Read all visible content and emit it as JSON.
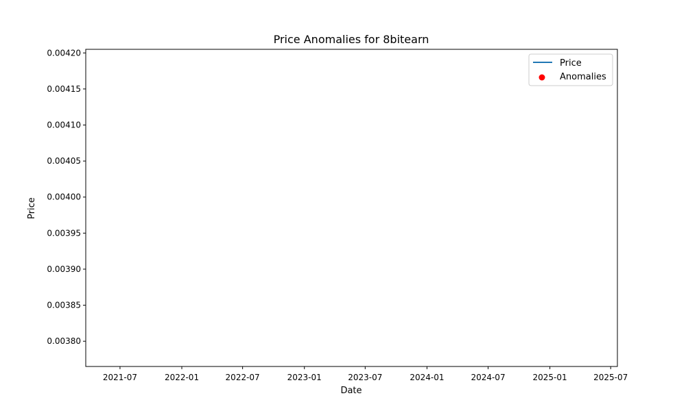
{
  "chart_data": {
    "type": "line",
    "title": "Price Anomalies for 8bitearn",
    "xlabel": "Date",
    "ylabel": "Price",
    "x_ticks": [
      "2021-07",
      "2022-01",
      "2022-07",
      "2023-01",
      "2023-07",
      "2024-01",
      "2024-07",
      "2025-01",
      "2025-07"
    ],
    "y_ticks": [
      "0.00380",
      "0.00385",
      "0.00390",
      "0.00395",
      "0.00400",
      "0.00405",
      "0.00410",
      "0.00415",
      "0.00420"
    ],
    "ylim": [
      0.003765,
      0.004205
    ],
    "xlim": [
      "2021-03-21",
      "2025-07-21"
    ],
    "grid": false,
    "legend_position": "upper right",
    "series": [
      {
        "name": "Price",
        "kind": "line",
        "color": "#1f77b4",
        "points": []
      },
      {
        "name": "Anomalies",
        "kind": "scatter",
        "color": "#ff0000",
        "points": []
      }
    ]
  }
}
